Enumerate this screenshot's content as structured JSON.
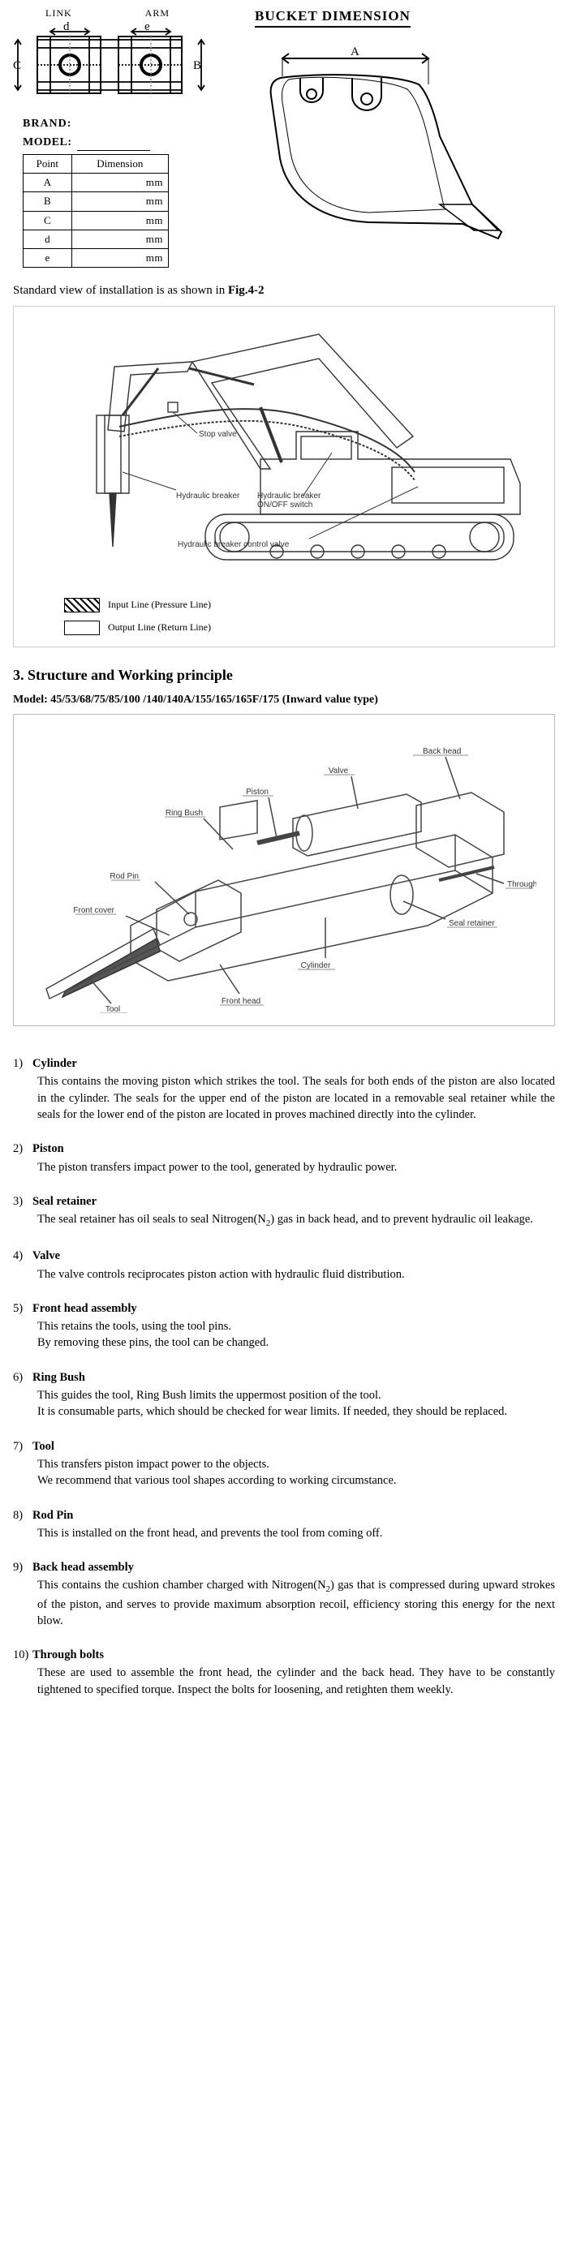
{
  "header": {
    "link_label": "LINK",
    "arm_label": "ARM",
    "bucket_title": "BUCKET  DIMENSION",
    "brand_label": "BRAND:",
    "model_label": "MODEL:",
    "dim_letters": {
      "A": "A",
      "B": "B",
      "C": "C",
      "d": "d",
      "e": "e"
    }
  },
  "dim_table": {
    "head_point": "Point",
    "head_dim": "Dimension",
    "rows": [
      {
        "pt": "A",
        "unit": "mm"
      },
      {
        "pt": "B",
        "unit": "mm"
      },
      {
        "pt": "C",
        "unit": "mm"
      },
      {
        "pt": "d",
        "unit": "mm"
      },
      {
        "pt": "e",
        "unit": "mm"
      }
    ]
  },
  "std_view_prefix": "Standard view of installation is as shown in ",
  "std_view_figref": "Fig.4-2",
  "excavator": {
    "stop_valve": "Stop valve",
    "hyd_breaker": "Hydraulic breaker",
    "onoff": "Hydraulic breaker ON/OFF switch",
    "ctrl_valve": "Hydraulic breaker control valve",
    "legend_input": "Input Line (Pressure Line)",
    "legend_output": "Output Line (Return Line)"
  },
  "section3_title": "3. Structure and Working principle",
  "section3_model": "Model: 45/53/68/75/85/100 /140/140A/155/165/165F/175 (Inward value type)",
  "breaker_labels": {
    "back_head": "Back head",
    "valve": "Valve",
    "piston": "Piston",
    "ring_bush": "Ring Bush",
    "rod_pin": "Rod Pin",
    "front_cover": "Front cover",
    "through_bolt": "Through bolt",
    "seal_retainer": "Seal retainer",
    "cylinder": "Cylinder",
    "front_head": "Front head",
    "tool": "Tool"
  },
  "components": [
    {
      "n": "1)",
      "t": "Cylinder",
      "b": "This contains the moving piston which strikes the tool. The seals for both ends of the piston are also located in the cylinder. The seals for the upper end of the piston are located in a removable seal retainer while the seals for the lower end of the piston are located in proves machined directly into the cylinder."
    },
    {
      "n": "2)",
      "t": "Piston",
      "b": "The piston transfers impact power to the tool, generated by hydraulic power."
    },
    {
      "n": "3)",
      "t": "Seal retainer",
      "b": "The seal retainer has oil seals to seal Nitrogen(N₂) gas in back head, and to prevent hydraulic oil leakage."
    },
    {
      "n": "4)",
      "t": "Valve",
      "b": "The valve controls reciprocates piston action with hydraulic fluid distribution."
    },
    {
      "n": "5)",
      "t": "Front head assembly",
      "b": "This retains the tools, using the tool pins.\nBy removing these pins, the tool can be changed."
    },
    {
      "n": "6)",
      "t": "Ring Bush",
      "b": "This guides the tool, Ring Bush limits the uppermost position of the tool.\nIt is consumable parts, which should be checked for wear limits. If needed, they should be replaced."
    },
    {
      "n": "7)",
      "t": "Tool",
      "b": "This transfers piston impact power to the objects.\nWe recommend that various tool shapes according to working circumstance."
    },
    {
      "n": "8)",
      "t": "Rod Pin",
      "b": "This is installed on the front head, and prevents the tool from coming off."
    },
    {
      "n": "9)",
      "t": "Back head assembly",
      "b": "This contains the cushion chamber charged with Nitrogen(N₂) gas that is compressed during upward strokes of the piston, and serves to provide maximum absorption recoil, efficiency storing this energy for the next blow."
    },
    {
      "n": "10)",
      "t": "Through bolts",
      "b": "These are used to assemble the front head, the cylinder and the back head. They have to be constantly tightened to specified torque. Inspect the bolts for loosening, and retighten them weekly."
    }
  ],
  "style": {
    "stroke": "#000000",
    "stroke_thin": "#333333",
    "fill_none": "none",
    "hatch_bg": "repeating-linear-gradient(45deg,#000 0 2px,#fff 2px 6px)"
  }
}
